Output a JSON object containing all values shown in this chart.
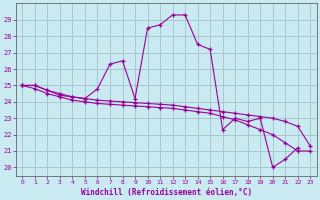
{
  "xlabel": "Windchill (Refroidissement éolien,°C)",
  "background_color": "#c8eaf0",
  "grid_color": "#9cb8c0",
  "line_color": "#990099",
  "hours": [
    0,
    1,
    2,
    3,
    4,
    5,
    6,
    7,
    8,
    9,
    10,
    11,
    12,
    13,
    14,
    15,
    16,
    17,
    18,
    19,
    20,
    21,
    22,
    23
  ],
  "series1": [
    25.0,
    25.0,
    24.7,
    24.5,
    24.3,
    24.2,
    24.8,
    26.3,
    26.5,
    24.2,
    28.5,
    28.7,
    29.3,
    29.3,
    27.5,
    27.2,
    22.3,
    23.0,
    22.8,
    23.0,
    20.0,
    20.5,
    21.2,
    null
  ],
  "series2": [
    25.0,
    25.0,
    24.7,
    24.4,
    24.3,
    24.2,
    24.1,
    24.05,
    24.0,
    23.95,
    23.9,
    23.85,
    23.8,
    23.7,
    23.6,
    23.5,
    23.4,
    23.3,
    23.2,
    23.1,
    23.0,
    22.8,
    22.5,
    21.3
  ],
  "series3": [
    25.0,
    24.8,
    24.5,
    24.3,
    24.1,
    24.0,
    23.9,
    23.85,
    23.8,
    23.75,
    23.7,
    23.65,
    23.6,
    23.5,
    23.4,
    23.3,
    23.1,
    22.9,
    22.6,
    22.3,
    22.0,
    21.5,
    21.0,
    21.0
  ],
  "ylim": [
    19.5,
    30.0
  ],
  "yticks": [
    20,
    21,
    22,
    23,
    24,
    25,
    26,
    27,
    28,
    29
  ],
  "xlim": [
    -0.5,
    23.5
  ],
  "xticks": [
    0,
    1,
    2,
    3,
    4,
    5,
    6,
    7,
    8,
    9,
    10,
    11,
    12,
    13,
    14,
    15,
    16,
    17,
    18,
    19,
    20,
    21,
    22,
    23
  ]
}
